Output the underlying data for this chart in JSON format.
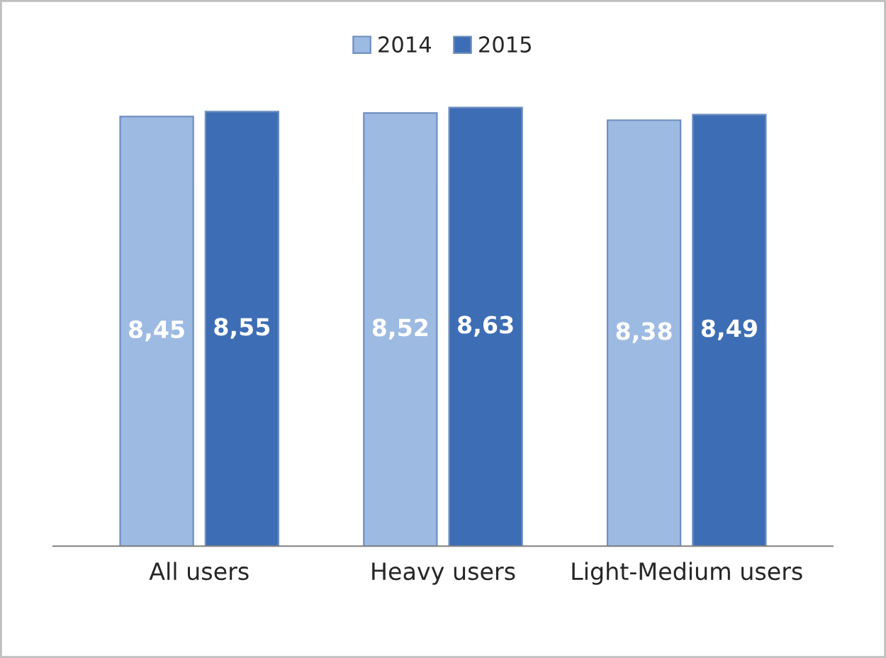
{
  "chart_data": {
    "type": "bar",
    "categories": [
      "All users",
      "Heavy users",
      "Light-Medium users"
    ],
    "series": [
      {
        "name": "2014",
        "color": "#9dbae2",
        "values": [
          8.45,
          8.52,
          8.38
        ],
        "value_labels": [
          "8,45",
          "8,52",
          "8,38"
        ]
      },
      {
        "name": "2015",
        "color": "#3d6db4",
        "values": [
          8.55,
          8.63,
          8.49
        ],
        "value_labels": [
          "8,55",
          "8,63",
          "8,49"
        ]
      }
    ],
    "legend": "top",
    "grid": false
  }
}
